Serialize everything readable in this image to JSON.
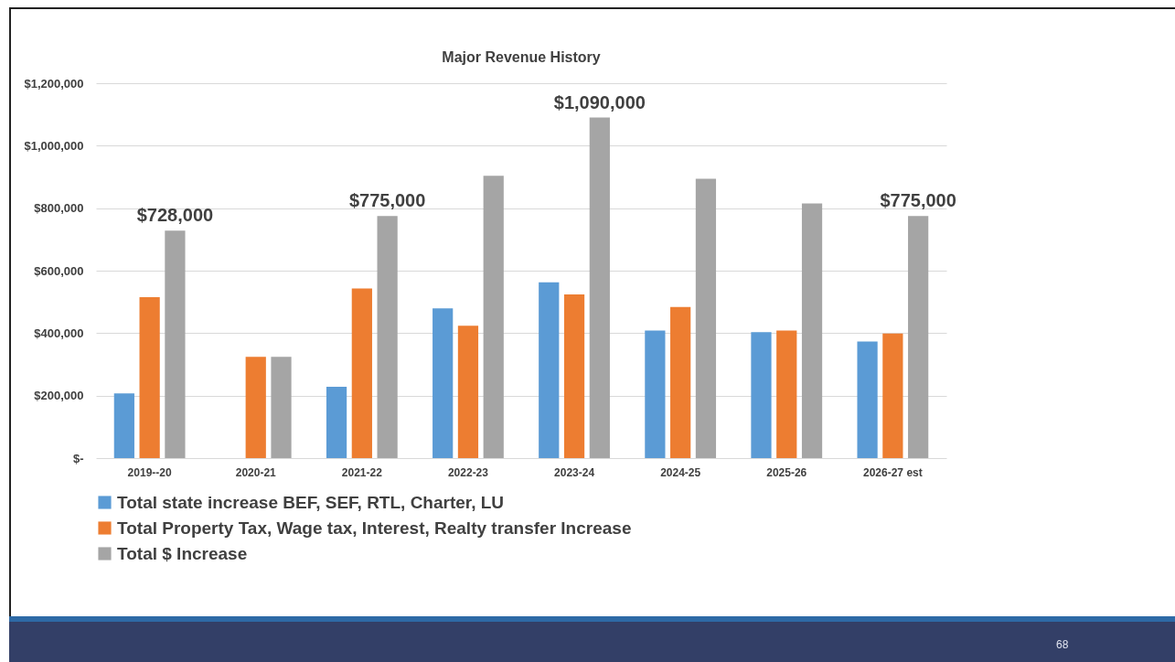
{
  "chart_data": {
    "type": "bar",
    "title": "Major Revenue History",
    "categories": [
      "2019--20",
      "2020-21",
      "2021-22",
      "2022-23",
      "2023-24",
      "2024-25",
      "2025-26",
      "2026-27 est"
    ],
    "series": [
      {
        "name": "Total state increase BEF, SEF, RTL, Charter, LU",
        "color": "#5b9bd5",
        "values": [
          207000,
          null,
          228000,
          479000,
          563000,
          408000,
          403000,
          373000
        ]
      },
      {
        "name": "Total Property Tax, Wage tax, Interest, Realty transfer Increase",
        "color": "#ed7d31",
        "values": [
          515000,
          324000,
          543000,
          424000,
          524000,
          484000,
          408000,
          399000
        ]
      },
      {
        "name": "Total $ Increase",
        "color": "#a5a5a5",
        "values": [
          728000,
          324000,
          775000,
          904000,
          1090000,
          894000,
          815000,
          775000
        ],
        "value_labels": [
          "$728,000",
          null,
          "$775,000",
          null,
          "$1,090,000",
          null,
          null,
          "$775,000"
        ]
      }
    ],
    "ylim": [
      0,
      1200000
    ],
    "yticks": [
      {
        "value": 0,
        "label": "$-"
      },
      {
        "value": 200000,
        "label": "$200,000"
      },
      {
        "value": 400000,
        "label": "$400,000"
      },
      {
        "value": 600000,
        "label": "$600,000"
      },
      {
        "value": 800000,
        "label": "$800,000"
      },
      {
        "value": 1000000,
        "label": "$1,000,000"
      },
      {
        "value": 1200000,
        "label": "$1,200,000"
      }
    ],
    "grid": "y",
    "legend": "bottom",
    "annotations": [
      "68"
    ]
  }
}
